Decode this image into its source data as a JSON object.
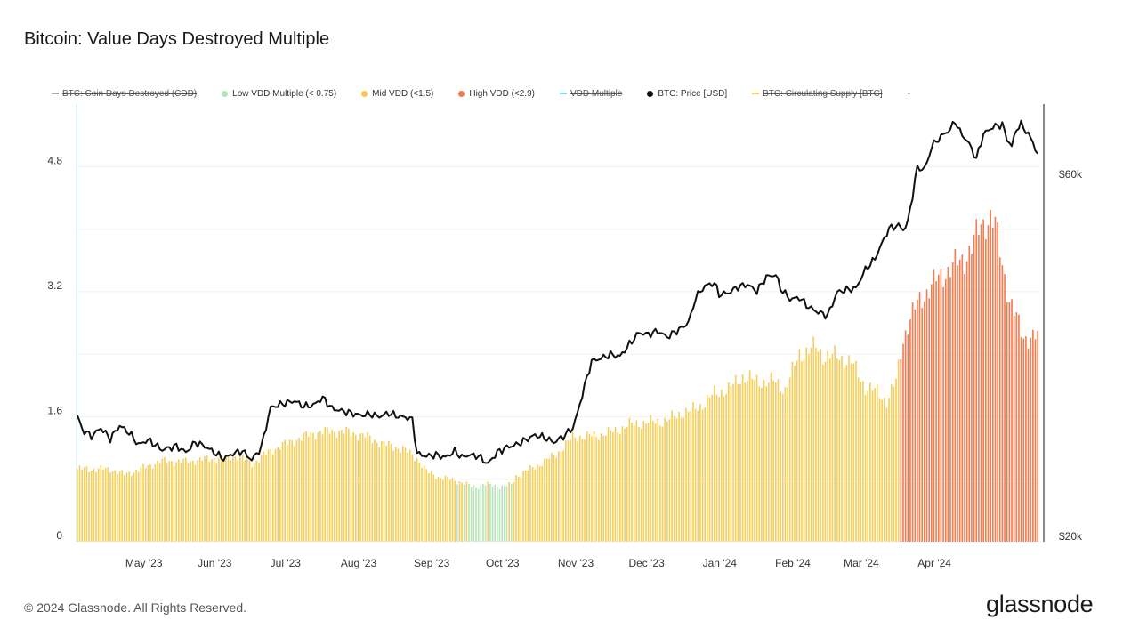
{
  "header": {
    "title": "Bitcoin: Value Days Destroyed Multiple"
  },
  "legend": [
    {
      "label": "BTC: Coin Days Destroyed (CDD)",
      "color": "#aaaaaa",
      "marker": "dash",
      "disabled": true
    },
    {
      "label": "Low VDD Multiple (< 0.75)",
      "color": "#b7e3b7",
      "marker": "dot",
      "disabled": false
    },
    {
      "label": "Mid VDD (<1.5)",
      "color": "#f5c84e",
      "marker": "dot",
      "disabled": false
    },
    {
      "label": "High VDD (<2.9)",
      "color": "#f07a4a",
      "marker": "dot",
      "disabled": false
    },
    {
      "label": "VDD Multiple",
      "color": "#7fd3e8",
      "marker": "dash",
      "disabled": true
    },
    {
      "label": "BTC: Price [USD]",
      "color": "#111111",
      "marker": "dot",
      "disabled": false
    },
    {
      "label": "BTC: Circulating Supply [BTC]",
      "color": "#f5c84e",
      "marker": "dash",
      "disabled": true
    },
    {
      "label": "-",
      "color": "#ffffff",
      "marker": "none",
      "disabled": false
    }
  ],
  "footer": {
    "copyright": "© 2024 Glassnode. All Rights Reserved.",
    "brand": "glassnode"
  },
  "chart_data": {
    "type": "bar",
    "title": "Bitcoin: Value Days Destroyed Multiple",
    "x_ticks": [
      "May '23",
      "Jun '23",
      "Jul '23",
      "Aug '23",
      "Sep '23",
      "Oct '23",
      "Nov '23",
      "Dec '23",
      "Jan '24",
      "Feb '24",
      "Mar '24",
      "Apr '24"
    ],
    "y_left": {
      "ticks": [
        0,
        1.6,
        3.2,
        4.8
      ],
      "tick_labels": [
        "0",
        "1.6",
        "3.2",
        "4.8"
      ],
      "range": [
        0,
        5.6
      ]
    },
    "y_right": {
      "tick_labels": [
        "$20k",
        "$60k"
      ],
      "scale": "log",
      "range": [
        20000,
        75000
      ]
    },
    "colors": {
      "low": "#b9e4bc",
      "mid": "#f6cf5a",
      "high": "#f17d50",
      "price": "#111111"
    },
    "thresholds": {
      "low": 0.75,
      "mid": 1.5
    },
    "series": [
      {
        "name": "VDD Multiple",
        "axis": "left",
        "type": "bar",
        "keypoints": [
          [
            0,
            0.93
          ],
          [
            14,
            0.93
          ],
          [
            20,
            0.86
          ],
          [
            27,
            0.93
          ],
          [
            35,
            1.03
          ],
          [
            47,
            1.03
          ],
          [
            55,
            1.06
          ],
          [
            62,
            1.07
          ],
          [
            68,
            1.1
          ],
          [
            74,
            1.0
          ],
          [
            82,
            1.17
          ],
          [
            92,
            1.3
          ],
          [
            100,
            1.39
          ],
          [
            108,
            1.42
          ],
          [
            116,
            1.4
          ],
          [
            122,
            1.35
          ],
          [
            130,
            1.25
          ],
          [
            138,
            1.19
          ],
          [
            144,
            1.07
          ],
          [
            148,
            0.9
          ],
          [
            153,
            0.83
          ],
          [
            158,
            0.8
          ],
          [
            163,
            0.76
          ],
          [
            166,
            0.72
          ],
          [
            169,
            0.7
          ],
          [
            172,
            0.74
          ],
          [
            176,
            0.72
          ],
          [
            180,
            0.71
          ],
          [
            184,
            0.73
          ],
          [
            186,
            0.84
          ],
          [
            194,
            0.96
          ],
          [
            203,
            1.12
          ],
          [
            210,
            1.34
          ],
          [
            220,
            1.36
          ],
          [
            228,
            1.42
          ],
          [
            234,
            1.5
          ],
          [
            242,
            1.53
          ],
          [
            250,
            1.55
          ],
          [
            256,
            1.65
          ],
          [
            260,
            1.67
          ],
          [
            266,
            1.78
          ],
          [
            270,
            1.9
          ],
          [
            276,
            1.95
          ],
          [
            282,
            2.12
          ],
          [
            288,
            2.05
          ],
          [
            295,
            2.05
          ],
          [
            300,
            1.95
          ],
          [
            306,
            2.4
          ],
          [
            313,
            2.49
          ],
          [
            316,
            2.38
          ],
          [
            322,
            2.37
          ],
          [
            328,
            2.3
          ],
          [
            334,
            1.98
          ],
          [
            339,
            1.92
          ],
          [
            343,
            1.8
          ],
          [
            347,
            2.05
          ],
          [
            350,
            2.6
          ],
          [
            353,
            2.85
          ],
          [
            356,
            3.05
          ],
          [
            360,
            3.2
          ],
          [
            364,
            3.35
          ],
          [
            368,
            3.45
          ],
          [
            372,
            3.55
          ],
          [
            376,
            3.62
          ],
          [
            379,
            3.78
          ],
          [
            383,
            4.05
          ],
          [
            387,
            4.15
          ],
          [
            389,
            4.05
          ],
          [
            392,
            3.55
          ],
          [
            395,
            3.1
          ],
          [
            398,
            2.85
          ],
          [
            401,
            2.62
          ],
          [
            402,
            2.62
          ]
        ]
      },
      {
        "name": "BTC: Price [USD]",
        "axis": "right",
        "type": "line",
        "keypoints": [
          [
            0,
            29300
          ],
          [
            2,
            28100
          ],
          [
            6,
            27500
          ],
          [
            10,
            28200
          ],
          [
            14,
            27300
          ],
          [
            18,
            28400
          ],
          [
            22,
            27800
          ],
          [
            26,
            26800
          ],
          [
            30,
            27200
          ],
          [
            36,
            26400
          ],
          [
            42,
            26700
          ],
          [
            46,
            26200
          ],
          [
            50,
            27000
          ],
          [
            54,
            26700
          ],
          [
            58,
            26200
          ],
          [
            62,
            25700
          ],
          [
            66,
            26100
          ],
          [
            70,
            26300
          ],
          [
            74,
            25600
          ],
          [
            78,
            26600
          ],
          [
            82,
            30000
          ],
          [
            88,
            30400
          ],
          [
            92,
            30600
          ],
          [
            96,
            30100
          ],
          [
            100,
            30200
          ],
          [
            104,
            30900
          ],
          [
            108,
            29900
          ],
          [
            112,
            29700
          ],
          [
            116,
            29500
          ],
          [
            120,
            29300
          ],
          [
            124,
            29400
          ],
          [
            128,
            29200
          ],
          [
            132,
            29500
          ],
          [
            136,
            29200
          ],
          [
            140,
            29100
          ],
          [
            142,
            28900
          ],
          [
            144,
            26100
          ],
          [
            148,
            25900
          ],
          [
            152,
            26000
          ],
          [
            156,
            25800
          ],
          [
            160,
            26300
          ],
          [
            163,
            25800
          ],
          [
            166,
            26000
          ],
          [
            170,
            25900
          ],
          [
            174,
            25300
          ],
          [
            178,
            26200
          ],
          [
            182,
            26600
          ],
          [
            186,
            26800
          ],
          [
            190,
            27200
          ],
          [
            194,
            27600
          ],
          [
            198,
            27400
          ],
          [
            202,
            27000
          ],
          [
            206,
            27500
          ],
          [
            210,
            28200
          ],
          [
            212,
            29500
          ],
          [
            218,
            34500
          ],
          [
            222,
            34800
          ],
          [
            226,
            35200
          ],
          [
            230,
            35000
          ],
          [
            234,
            36300
          ],
          [
            238,
            37600
          ],
          [
            242,
            37400
          ],
          [
            246,
            37800
          ],
          [
            250,
            37100
          ],
          [
            254,
            37800
          ],
          [
            258,
            38500
          ],
          [
            260,
            39500
          ],
          [
            262,
            41800
          ],
          [
            266,
            43300
          ],
          [
            270,
            43700
          ],
          [
            272,
            42200
          ],
          [
            276,
            42400
          ],
          [
            280,
            43200
          ],
          [
            284,
            43500
          ],
          [
            288,
            42600
          ],
          [
            292,
            44500
          ],
          [
            296,
            44800
          ],
          [
            298,
            43000
          ],
          [
            302,
            41600
          ],
          [
            306,
            41800
          ],
          [
            310,
            40600
          ],
          [
            314,
            40000
          ],
          [
            318,
            39600
          ],
          [
            320,
            41000
          ],
          [
            322,
            42500
          ],
          [
            326,
            42800
          ],
          [
            330,
            43000
          ],
          [
            334,
            45500
          ],
          [
            338,
            47000
          ],
          [
            342,
            50000
          ],
          [
            344,
            51500
          ],
          [
            348,
            52000
          ],
          [
            350,
            51300
          ],
          [
            352,
            52500
          ],
          [
            354,
            57000
          ],
          [
            356,
            62000
          ],
          [
            358,
            61500
          ],
          [
            360,
            62500
          ],
          [
            362,
            66000
          ],
          [
            366,
            68000
          ],
          [
            370,
            69500
          ],
          [
            372,
            71300
          ],
          [
            374,
            69000
          ],
          [
            378,
            66500
          ],
          [
            381,
            63500
          ],
          [
            384,
            68500
          ],
          [
            388,
            70000
          ],
          [
            392,
            70500
          ],
          [
            394,
            67500
          ],
          [
            396,
            66000
          ],
          [
            398,
            69600
          ],
          [
            400,
            70500
          ],
          [
            403,
            68500
          ],
          [
            405,
            66800
          ],
          [
            406,
            65500
          ],
          [
            407,
            64500
          ]
        ]
      }
    ]
  }
}
